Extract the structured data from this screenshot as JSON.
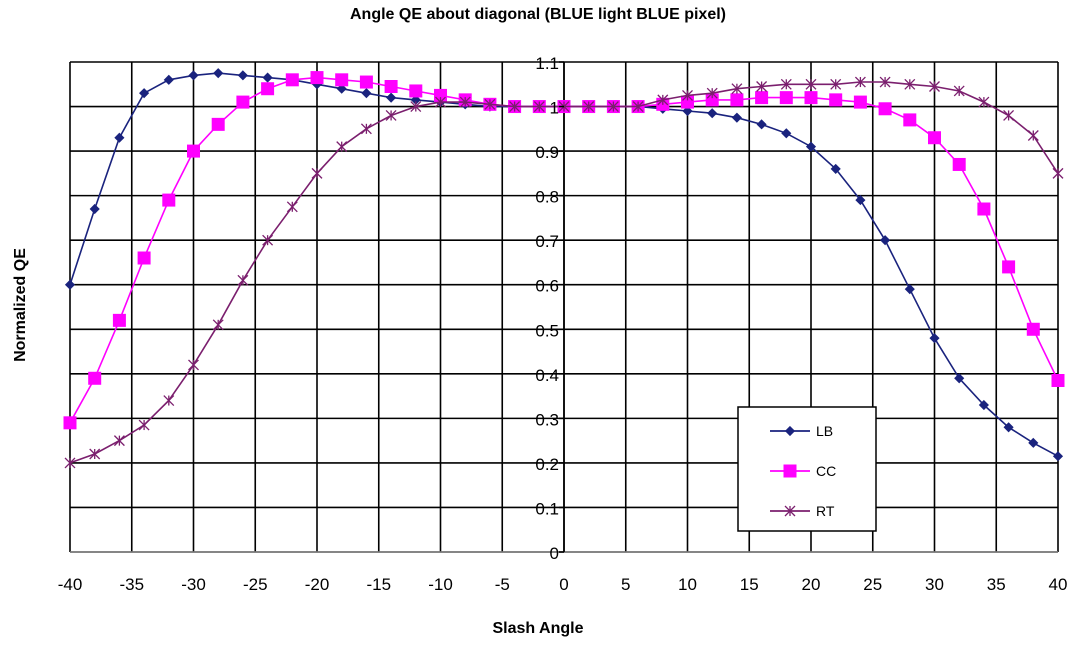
{
  "chart_data": {
    "type": "line",
    "title": "Angle QE about diagonal (BLUE light BLUE pixel)",
    "xlabel": "Slash Angle",
    "ylabel": "Normalized QE",
    "xlim": [
      -40,
      40
    ],
    "ylim": [
      0,
      1.1
    ],
    "x_ticks": [
      "-40",
      "-35",
      "-30",
      "-25",
      "-20",
      "-15",
      "-10",
      "-5",
      "0",
      "5",
      "10",
      "15",
      "20",
      "25",
      "30",
      "35",
      "40"
    ],
    "y_ticks": [
      "0",
      "0.1",
      "0.2",
      "0.3",
      "0.4",
      "0.5",
      "0.6",
      "0.7",
      "0.8",
      "0.9",
      "1",
      "1.1"
    ],
    "grid": true,
    "legend_position": "bottom-right",
    "x": [
      -40,
      -38,
      -36,
      -34,
      -32,
      -30,
      -28,
      -26,
      -24,
      -22,
      -20,
      -18,
      -16,
      -14,
      -12,
      -10,
      -8,
      -6,
      -4,
      -2,
      0,
      2,
      4,
      6,
      8,
      10,
      12,
      14,
      16,
      18,
      20,
      22,
      24,
      26,
      28,
      30,
      32,
      34,
      36,
      38,
      40
    ],
    "series": [
      {
        "name": "LB",
        "color": "#1a237e",
        "marker": "diamond",
        "values": [
          0.6,
          0.77,
          0.93,
          1.03,
          1.06,
          1.07,
          1.075,
          1.07,
          1.065,
          1.06,
          1.05,
          1.04,
          1.03,
          1.02,
          1.015,
          1.01,
          1.005,
          1.0,
          1.0,
          1.0,
          1.0,
          1.0,
          1.0,
          1.0,
          0.995,
          0.99,
          0.985,
          0.975,
          0.96,
          0.94,
          0.91,
          0.86,
          0.79,
          0.7,
          0.59,
          0.48,
          0.39,
          0.33,
          0.28,
          0.245,
          0.215
        ]
      },
      {
        "name": "CC",
        "color": "#ff00ff",
        "marker": "square",
        "values": [
          0.29,
          0.39,
          0.52,
          0.66,
          0.79,
          0.9,
          0.96,
          1.01,
          1.04,
          1.06,
          1.065,
          1.06,
          1.055,
          1.045,
          1.035,
          1.025,
          1.015,
          1.005,
          1.0,
          1.0,
          1.0,
          1.0,
          1.0,
          1.0,
          1.005,
          1.01,
          1.015,
          1.015,
          1.02,
          1.02,
          1.02,
          1.015,
          1.01,
          0.995,
          0.97,
          0.93,
          0.87,
          0.77,
          0.64,
          0.5,
          0.385
        ]
      },
      {
        "name": "RT",
        "color": "#7b1f6e",
        "marker": "asterisk",
        "values": [
          0.2,
          0.22,
          0.25,
          0.285,
          0.34,
          0.42,
          0.51,
          0.61,
          0.7,
          0.775,
          0.85,
          0.91,
          0.95,
          0.98,
          1.0,
          1.01,
          1.01,
          1.005,
          1.0,
          1.0,
          1.0,
          1.0,
          1.0,
          1.0,
          1.015,
          1.025,
          1.03,
          1.04,
          1.045,
          1.05,
          1.05,
          1.05,
          1.055,
          1.055,
          1.05,
          1.045,
          1.035,
          1.01,
          0.98,
          0.935,
          0.85
        ]
      }
    ]
  }
}
